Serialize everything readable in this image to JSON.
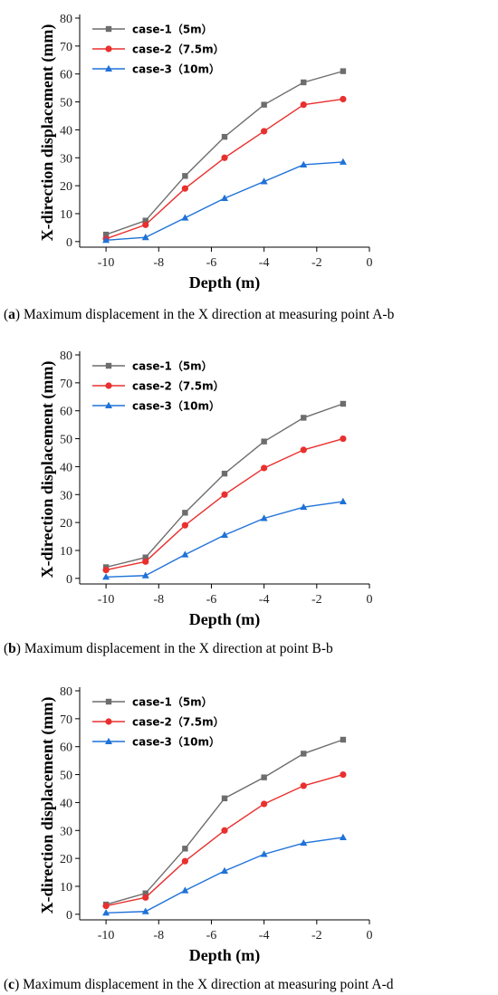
{
  "chart_data": [
    {
      "type": "line",
      "panel_label": "a",
      "caption_text": " Maximum displacement in the X direction at measuring point A-b",
      "xlabel": "Depth (m)",
      "ylabel": "X-direction displacement (mm)",
      "xlim": [
        -11,
        0
      ],
      "ylim": [
        -2,
        80
      ],
      "x_ticks": [
        -10,
        -8,
        -6,
        -4,
        -2,
        0
      ],
      "y_ticks": [
        0,
        10,
        20,
        30,
        40,
        50,
        60,
        70,
        80
      ],
      "grid": false,
      "legend_position": "top-left",
      "x": [
        -10,
        -8.5,
        -7,
        -5.5,
        -4,
        -2.5,
        -1
      ],
      "series": [
        {
          "name": "case-1（5m）",
          "color": "#6d6d6d",
          "marker": "square",
          "values": [
            2.5,
            7.5,
            23.5,
            37.5,
            49,
            57,
            61
          ]
        },
        {
          "name": "case-2（7.5m）",
          "color": "#e8312f",
          "marker": "circle",
          "values": [
            1,
            6,
            19,
            30,
            39.5,
            49,
            51
          ]
        },
        {
          "name": "case-3（10m）",
          "color": "#1f72d8",
          "marker": "triangle",
          "values": [
            0.5,
            1.5,
            8.5,
            15.5,
            21.5,
            27.5,
            28.5
          ]
        }
      ]
    },
    {
      "type": "line",
      "panel_label": "b",
      "caption_text": " Maximum displacement in the X direction at point B-b",
      "xlabel": "Depth (m)",
      "ylabel": "X-direction displacement (mm)",
      "xlim": [
        -11,
        0
      ],
      "ylim": [
        -2,
        80
      ],
      "x_ticks": [
        -10,
        -8,
        -6,
        -4,
        -2,
        0
      ],
      "y_ticks": [
        0,
        10,
        20,
        30,
        40,
        50,
        60,
        70,
        80
      ],
      "grid": false,
      "legend_position": "top-left",
      "x": [
        -10,
        -8.5,
        -7,
        -5.5,
        -4,
        -2.5,
        -1
      ],
      "series": [
        {
          "name": "case-1（5m）",
          "color": "#6d6d6d",
          "marker": "square",
          "values": [
            4,
            7.5,
            23.5,
            37.5,
            49,
            57.5,
            62.5
          ]
        },
        {
          "name": "case-2（7.5m）",
          "color": "#e8312f",
          "marker": "circle",
          "values": [
            3,
            6,
            19,
            30,
            39.5,
            46,
            50
          ]
        },
        {
          "name": "case-3（10m）",
          "color": "#1f72d8",
          "marker": "triangle",
          "values": [
            0.5,
            1,
            8.5,
            15.5,
            21.5,
            25.5,
            27.5
          ]
        }
      ]
    },
    {
      "type": "line",
      "panel_label": "c",
      "caption_text": " Maximum displacement in the X direction at measuring point A-d",
      "xlabel": "Depth (m)",
      "ylabel": "X-direction displacement (mm)",
      "xlim": [
        -11,
        0
      ],
      "ylim": [
        -2,
        80
      ],
      "x_ticks": [
        -10,
        -8,
        -6,
        -4,
        -2,
        0
      ],
      "y_ticks": [
        0,
        10,
        20,
        30,
        40,
        50,
        60,
        70,
        80
      ],
      "grid": false,
      "legend_position": "top-left",
      "x": [
        -10,
        -8.5,
        -7,
        -5.5,
        -4,
        -2.5,
        -1
      ],
      "series": [
        {
          "name": "case-1（5m）",
          "color": "#6d6d6d",
          "marker": "square",
          "values": [
            3.5,
            7.5,
            23.5,
            41.5,
            49,
            57.5,
            62.5
          ]
        },
        {
          "name": "case-2（7.5m）",
          "color": "#e8312f",
          "marker": "circle",
          "values": [
            3,
            6,
            19,
            30,
            39.5,
            46,
            50
          ]
        },
        {
          "name": "case-3（10m）",
          "color": "#1f72d8",
          "marker": "triangle",
          "values": [
            0.5,
            1,
            8.5,
            15.5,
            21.5,
            25.5,
            27.5
          ]
        }
      ]
    }
  ]
}
